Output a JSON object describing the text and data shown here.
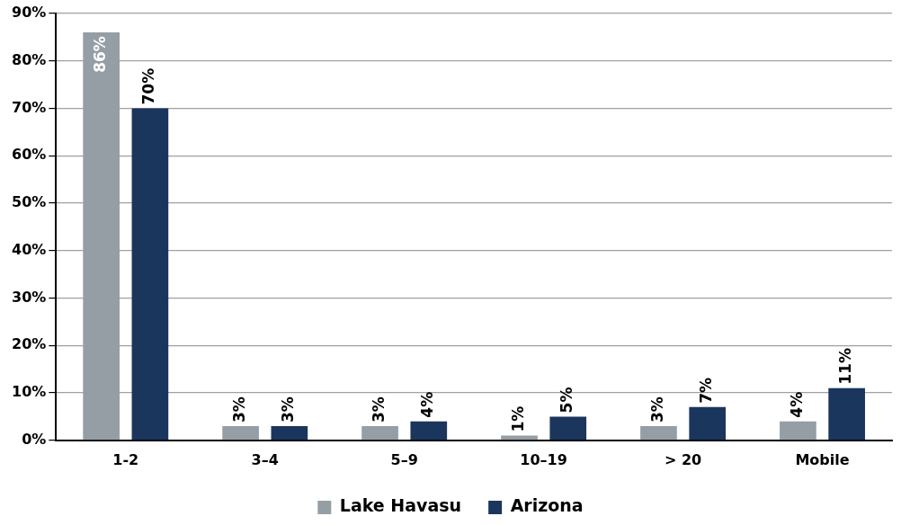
{
  "chart_data": {
    "type": "bar",
    "categories": [
      "1-2",
      "3–4",
      "5–9",
      "10–19",
      "> 20",
      "Mobile"
    ],
    "series": [
      {
        "name": "Lake Havasu",
        "color": "#959ea5",
        "values": [
          86,
          3,
          3,
          1,
          3,
          4
        ],
        "value_labels": [
          "86%",
          "3%",
          "3%",
          "1%",
          "3%",
          "4%"
        ]
      },
      {
        "name": "Arizona",
        "color": "#1b365d",
        "values": [
          70,
          3,
          4,
          5,
          7,
          11
        ],
        "value_labels": [
          "70%",
          "3%",
          "4%",
          "5%",
          "7%",
          "11%"
        ]
      }
    ],
    "ylim": [
      0,
      90
    ],
    "yticks": [
      {
        "value": 0,
        "label": "0%"
      },
      {
        "value": 10,
        "label": "10%"
      },
      {
        "value": 20,
        "label": "20%"
      },
      {
        "value": 30,
        "label": "30%"
      },
      {
        "value": 40,
        "label": "40%"
      },
      {
        "value": 50,
        "label": "50%"
      },
      {
        "value": 60,
        "label": "60%"
      },
      {
        "value": 70,
        "label": "70%"
      },
      {
        "value": 80,
        "label": "80%"
      },
      {
        "value": 90,
        "label": "90%"
      }
    ],
    "grid": "y",
    "legend": "bottom"
  }
}
